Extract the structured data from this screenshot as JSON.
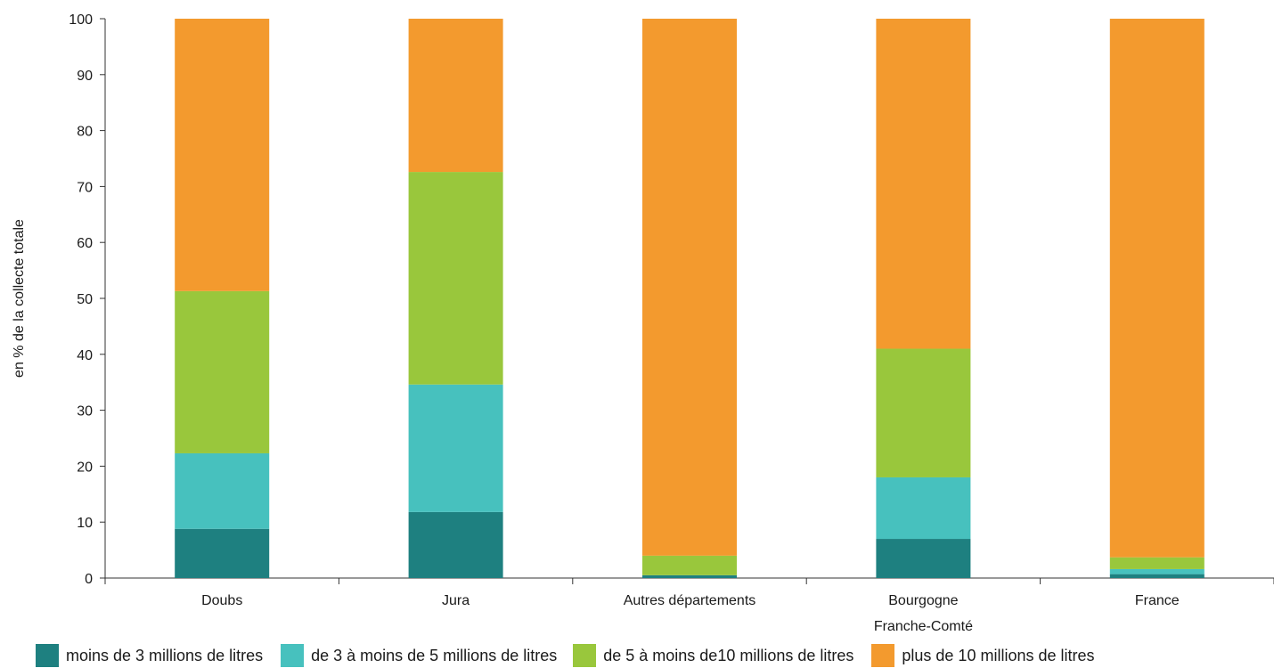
{
  "chart_data": {
    "type": "bar",
    "stacked": true,
    "ylabel": "en % de la collecte totale",
    "xlabel": "",
    "ylim": [
      0,
      100
    ],
    "yticks": [
      0,
      10,
      20,
      30,
      40,
      50,
      60,
      70,
      80,
      90,
      100
    ],
    "grid": false,
    "legend_position": "bottom",
    "categories": [
      "Doubs",
      "Jura",
      "Autres départements",
      "Bourgogne\nFranche-Comté",
      "France"
    ],
    "category_lines": [
      [
        "Doubs"
      ],
      [
        "Jura"
      ],
      [
        "Autres départements"
      ],
      [
        "Bourgogne",
        "Franche-Comté"
      ],
      [
        "France"
      ]
    ],
    "series": [
      {
        "name": "moins de 3 millions de litres",
        "color": "#1e8080",
        "values": [
          8.8,
          11.8,
          0.5,
          7.0,
          0.7
        ]
      },
      {
        "name": "de 3 à moins de 5 millions de litres",
        "color": "#47c1be",
        "values": [
          13.5,
          22.8,
          0.0,
          11.0,
          0.9
        ]
      },
      {
        "name": "de 5 à moins de10  millions de litres",
        "color": "#99c73c",
        "values": [
          29.0,
          38.0,
          3.5,
          23.0,
          2.1
        ]
      },
      {
        "name": "plus de 10 millions de litres",
        "color": "#f39a2e",
        "values": [
          48.7,
          27.4,
          96.0,
          59.0,
          96.3
        ]
      }
    ]
  }
}
